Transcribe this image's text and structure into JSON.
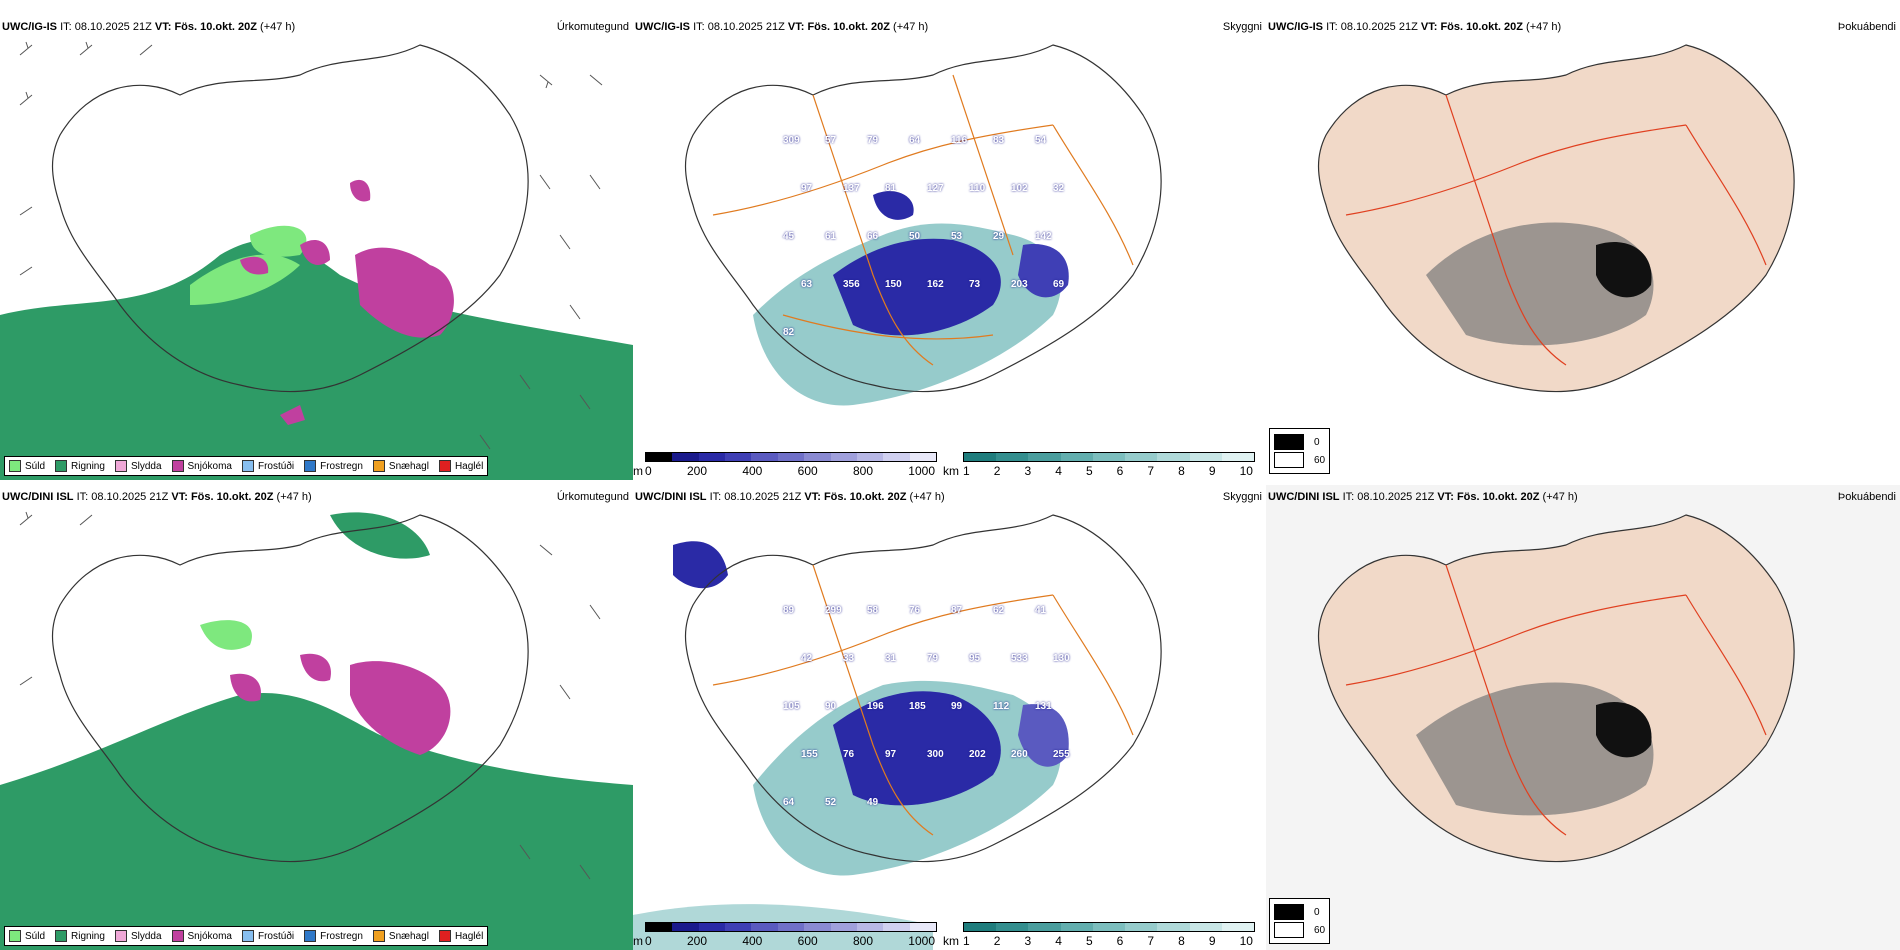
{
  "rows": [
    {
      "model": "UWC/IG-IS",
      "it_label": "IT:",
      "it_value": "08.10.2025 21Z",
      "vt_label": "VT:",
      "vt_value": "Fös. 10.okt. 20Z",
      "lead": "(+47 h)"
    },
    {
      "model": "UWC/DINI ISL",
      "it_label": "IT:",
      "it_value": "08.10.2025 21Z",
      "vt_label": "VT:",
      "vt_value": "Fös. 10.okt. 20Z",
      "lead": "(+47 h)"
    }
  ],
  "panel_titles": {
    "precip": "Úrkomutegund",
    "cloud": "Skyggni",
    "fog": "Þokuábendi"
  },
  "precip_legend": [
    {
      "label": "Súld",
      "color": "#7ee87e"
    },
    {
      "label": "Rigning",
      "color": "#2e9b66"
    },
    {
      "label": "Slydda",
      "color": "#f0a8d8"
    },
    {
      "label": "Snjókoma",
      "color": "#c0409f"
    },
    {
      "label": "Frostúði",
      "color": "#88bff0"
    },
    {
      "label": "Frostregn",
      "color": "#2f78c8"
    },
    {
      "label": "Snæhagl",
      "color": "#f0a020"
    },
    {
      "label": "Haglél",
      "color": "#e02020"
    }
  ],
  "cloudbase_scale": {
    "unit": "m",
    "ticks": [
      "0",
      "200",
      "400",
      "600",
      "800",
      "1000"
    ],
    "colors": [
      "#000000",
      "#1a1a8c",
      "#2a2aa6",
      "#3f3fb5",
      "#5a5ac0",
      "#7070c8",
      "#8a8ad2",
      "#a0a0dc",
      "#b8b8e6",
      "#d0d0f0",
      "#e8e8f8"
    ]
  },
  "visibility_scale": {
    "unit": "km",
    "ticks": [
      "1",
      "2",
      "3",
      "4",
      "5",
      "6",
      "7",
      "8",
      "9",
      "10"
    ],
    "colors": [
      "#1f7d7d",
      "#338e8e",
      "#4a9e9e",
      "#62aeae",
      "#7cbebe",
      "#96cccc",
      "#b0dada",
      "#c8e6e6",
      "#e0f2f2"
    ]
  },
  "fog_legend": [
    {
      "label": "0",
      "color": "#000000"
    },
    {
      "label": "60",
      "color": "#ffffff"
    }
  ],
  "cloud_labels_top": [
    "309",
    "57",
    "79",
    "64",
    "116",
    "83",
    "54",
    "97",
    "137",
    "81",
    "127",
    "110",
    "102",
    "32",
    "45",
    "61",
    "66",
    "50",
    "53",
    "29",
    "142",
    "63",
    "356",
    "150",
    "162",
    "73",
    "203",
    "69",
    "82"
  ],
  "cloud_labels_bottom": [
    "89",
    "299",
    "58",
    "76",
    "87",
    "62",
    "41",
    "42",
    "33",
    "31",
    "79",
    "95",
    "533",
    "130",
    "105",
    "90",
    "196",
    "185",
    "99",
    "112",
    "131",
    "155",
    "76",
    "97",
    "300",
    "202",
    "260",
    "255",
    "64",
    "52",
    "49"
  ]
}
